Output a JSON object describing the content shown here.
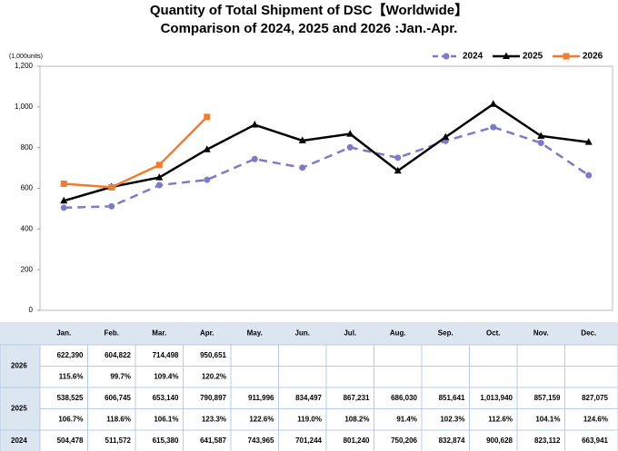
{
  "chart_data": {
    "type": "line",
    "title": "Quantity of Total Shipment of DSC【Worldwide】",
    "subtitle": "Comparison of 2024, 2025 and 2026 :Jan.-Apr.",
    "y_label": "(1,000units)",
    "categories": [
      "Jan.",
      "Feb.",
      "Mar.",
      "Apr.",
      "May.",
      "Jun.",
      "Jul.",
      "Aug.",
      "Sep.",
      "Oct.",
      "Nov.",
      "Dec."
    ],
    "ylim": [
      0,
      1200
    ],
    "yticks": [
      0,
      200,
      400,
      600,
      800,
      {
        "value": 1000,
        "label": "1,000"
      },
      {
        "value": 1200,
        "label": "1,200"
      }
    ],
    "grid": false,
    "legend": "top-right",
    "series": [
      {
        "name": "2024",
        "color": "#7b7bc8",
        "dash": true,
        "marker": "circle",
        "values": [
          504.478,
          511.572,
          615.38,
          641.587,
          743.965,
          701.244,
          801.24,
          750.206,
          832.874,
          900.628,
          823.112,
          663.941
        ],
        "value_labels": [
          "504,478",
          "511,572",
          "615,380",
          "641,587",
          "743,965",
          "701,244",
          "801,240",
          "750,206",
          "832,874",
          "900,628",
          "823,112",
          "663,941"
        ]
      },
      {
        "name": "2025",
        "color": "#000000",
        "dash": false,
        "marker": "triangle",
        "values": [
          538.525,
          606.745,
          653.14,
          790.897,
          911.996,
          834.497,
          867.231,
          686.03,
          851.641,
          1013.94,
          857.159,
          827.075
        ],
        "value_labels": [
          "538,525",
          "606,745",
          "653,140",
          "790,897",
          "911,996",
          "834,497",
          "867,231",
          "686,030",
          "851,641",
          "1,013,940",
          "857,159",
          "827,075"
        ],
        "growth_labels": [
          "106.7%",
          "118.6%",
          "106.1%",
          "123.3%",
          "122.6%",
          "119.0%",
          "108.2%",
          "91.4%",
          "102.3%",
          "112.6%",
          "104.1%",
          "124.6%"
        ]
      },
      {
        "name": "2026",
        "color": "#ed7d31",
        "dash": false,
        "marker": "square",
        "values": [
          622.39,
          604.822,
          714.498,
          950.651,
          null,
          null,
          null,
          null,
          null,
          null,
          null,
          null
        ],
        "value_labels": [
          "622,390",
          "604,822",
          "714,498",
          "950,651",
          null,
          null,
          null,
          null,
          null,
          null,
          null,
          null
        ],
        "growth_labels": [
          "115.6%",
          "99.7%",
          "109.4%",
          "120.2%",
          null,
          null,
          null,
          null,
          null,
          null,
          null,
          null
        ]
      }
    ]
  }
}
